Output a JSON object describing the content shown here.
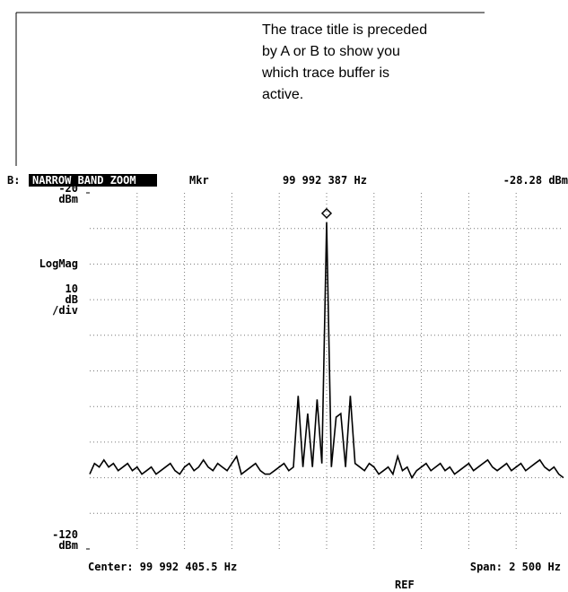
{
  "callout": {
    "lines": [
      "The trace title is preceded",
      "by A or B to show you",
      "which trace buffer is",
      "active."
    ]
  },
  "header": {
    "buffer": "B:",
    "trace_title": "NARROW BAND ZOOM",
    "marker_label": "Mkr",
    "marker_frequency": "99 992 387 Hz",
    "marker_level": "-28.28 dBm"
  },
  "side_labels": {
    "top_unit": "dBm",
    "format": "LogMag",
    "scale_lines": [
      "10",
      "dB",
      "/div"
    ],
    "bottom_unit": "dBm"
  },
  "footer": {
    "center": "Center: 99 992 405.5 Hz",
    "span": "Span: 2 500 Hz",
    "ref": "REF"
  },
  "chart_data": {
    "type": "line",
    "color": "#000000",
    "grid": true,
    "ylim": [
      -120,
      -20
    ],
    "yticks": [
      -20,
      -120
    ],
    "values": [
      -99,
      -96,
      -97,
      -95,
      -97,
      -96,
      -98,
      -97,
      -96,
      -98,
      -97,
      -99,
      -98,
      -97,
      -99,
      -98,
      -97,
      -96,
      -98,
      -99,
      -97,
      -96,
      -98,
      -97,
      -95,
      -97,
      -98,
      -96,
      -97,
      -98,
      -96,
      -94,
      -99,
      -98,
      -97,
      -96,
      -98,
      -99,
      -99,
      -98,
      -97,
      -96,
      -98,
      -97,
      -77,
      -97,
      -82,
      -97,
      -78,
      -96,
      -28.28,
      -97,
      -83,
      -82,
      -97,
      -77,
      -96,
      -97,
      -98,
      -96,
      -97,
      -99,
      -98,
      -97,
      -99,
      -94,
      -98,
      -97,
      -100,
      -98,
      -97,
      -96,
      -98,
      -97,
      -96,
      -98,
      -97,
      -99,
      -98,
      -97,
      -96,
      -98,
      -97,
      -96,
      -95,
      -97,
      -98,
      -97,
      -96,
      -98,
      -97,
      -96,
      -98,
      -97,
      -96,
      -95,
      -97,
      -98,
      -97,
      -99,
      -100
    ]
  }
}
